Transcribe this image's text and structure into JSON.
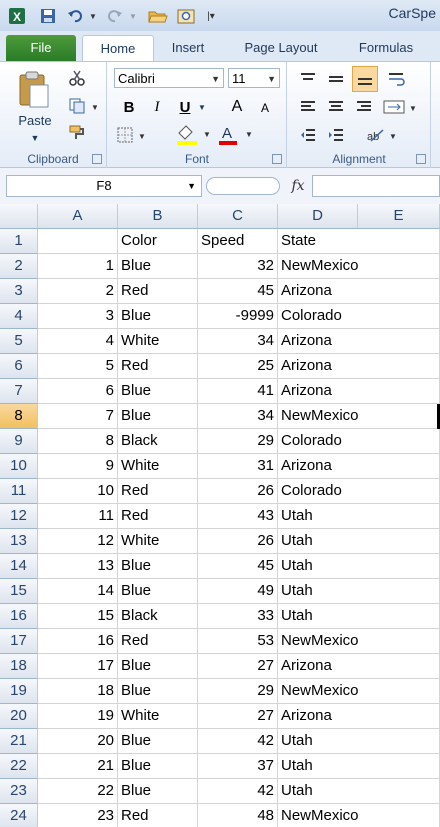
{
  "window": {
    "title": "CarSpe"
  },
  "colors": {
    "file_tab": "#2a7b27",
    "excel_green": "#1e7145",
    "selected_header": "#f1c15f"
  },
  "quick_access": [
    "excel-icon",
    "save-icon",
    "undo-icon",
    "redo-icon",
    "open-icon",
    "print-preview-icon",
    "customize-icon"
  ],
  "tabs": [
    "File",
    "Home",
    "Insert",
    "Page Layout",
    "Formulas"
  ],
  "active_tab": "Home",
  "ribbon": {
    "clipboard": {
      "label": "Clipboard",
      "paste": "Paste"
    },
    "font": {
      "label": "Font",
      "font_name": "Calibri",
      "font_size": "11",
      "bold": "B",
      "italic": "I",
      "underline": "U",
      "grow": "A",
      "shrink": "A",
      "font_color": "A"
    },
    "alignment": {
      "label": "Alignment"
    }
  },
  "formula_bar": {
    "name_box": "F8",
    "fx": "fx",
    "formula": ""
  },
  "sheet": {
    "columns": [
      "A",
      "B",
      "C",
      "D",
      "E"
    ],
    "selected_row": "8",
    "rows": [
      {
        "n": "1",
        "a": "",
        "b": "Color",
        "c": "Speed",
        "d": "State"
      },
      {
        "n": "2",
        "a": "1",
        "b": "Blue",
        "c": "32",
        "d": "NewMexico"
      },
      {
        "n": "3",
        "a": "2",
        "b": "Red",
        "c": "45",
        "d": "Arizona"
      },
      {
        "n": "4",
        "a": "3",
        "b": "Blue",
        "c": "-9999",
        "d": "Colorado"
      },
      {
        "n": "5",
        "a": "4",
        "b": "White",
        "c": "34",
        "d": "Arizona"
      },
      {
        "n": "6",
        "a": "5",
        "b": "Red",
        "c": "25",
        "d": "Arizona"
      },
      {
        "n": "7",
        "a": "6",
        "b": "Blue",
        "c": "41",
        "d": "Arizona"
      },
      {
        "n": "8",
        "a": "7",
        "b": "Blue",
        "c": "34",
        "d": "NewMexico"
      },
      {
        "n": "9",
        "a": "8",
        "b": "Black",
        "c": "29",
        "d": "Colorado"
      },
      {
        "n": "10",
        "a": "9",
        "b": "White",
        "c": "31",
        "d": "Arizona"
      },
      {
        "n": "11",
        "a": "10",
        "b": "Red",
        "c": "26",
        "d": "Colorado"
      },
      {
        "n": "12",
        "a": "11",
        "b": "Red",
        "c": "43",
        "d": "Utah"
      },
      {
        "n": "13",
        "a": "12",
        "b": "White",
        "c": "26",
        "d": "Utah"
      },
      {
        "n": "14",
        "a": "13",
        "b": "Blue",
        "c": "45",
        "d": "Utah"
      },
      {
        "n": "15",
        "a": "14",
        "b": "Blue",
        "c": "49",
        "d": "Utah"
      },
      {
        "n": "16",
        "a": "15",
        "b": "Black",
        "c": "33",
        "d": "Utah"
      },
      {
        "n": "17",
        "a": "16",
        "b": "Red",
        "c": "53",
        "d": "NewMexico"
      },
      {
        "n": "18",
        "a": "17",
        "b": "Blue",
        "c": "27",
        "d": "Arizona"
      },
      {
        "n": "19",
        "a": "18",
        "b": "Blue",
        "c": "29",
        "d": "NewMexico"
      },
      {
        "n": "20",
        "a": "19",
        "b": "White",
        "c": "27",
        "d": "Arizona"
      },
      {
        "n": "21",
        "a": "20",
        "b": "Blue",
        "c": "42",
        "d": "Utah"
      },
      {
        "n": "22",
        "a": "21",
        "b": "Blue",
        "c": "37",
        "d": "Utah"
      },
      {
        "n": "23",
        "a": "22",
        "b": "Blue",
        "c": "42",
        "d": "Utah"
      },
      {
        "n": "24",
        "a": "23",
        "b": "Red",
        "c": "48",
        "d": "NewMexico"
      }
    ]
  }
}
